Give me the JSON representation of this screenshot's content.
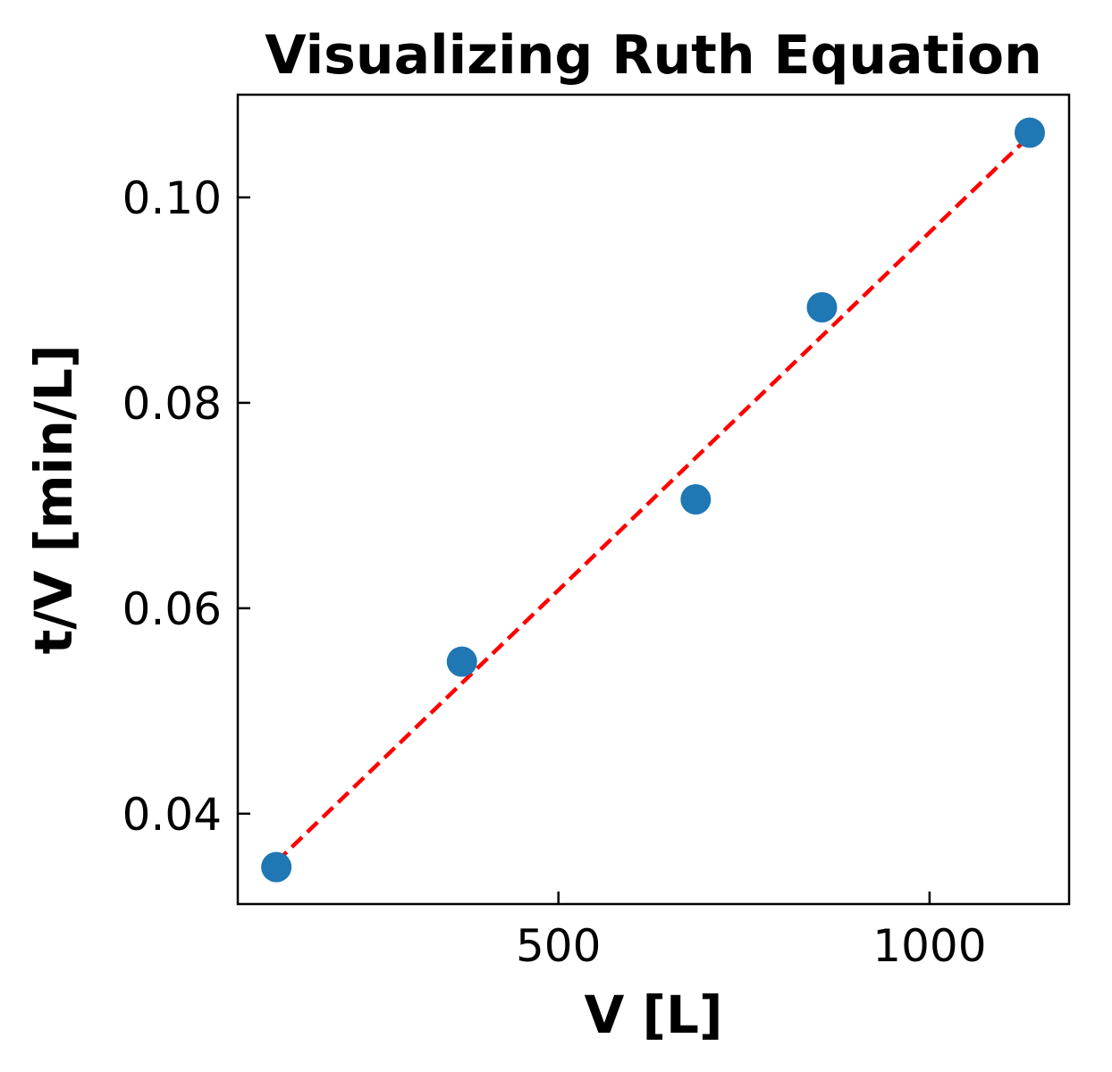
{
  "chart_data": {
    "type": "scatter",
    "title": "Visualizing Ruth Equation",
    "xlabel": "V [L]",
    "ylabel": "t/V [min/L]",
    "xlim": [
      68,
      1188
    ],
    "ylim": [
      0.0312,
      0.11
    ],
    "xticks": [
      500,
      1000
    ],
    "xtick_labels": [
      "500",
      "1000"
    ],
    "yticks": [
      0.04,
      0.06,
      0.08,
      0.1
    ],
    "ytick_labels": [
      "0.04",
      "0.06",
      "0.08",
      "0.10"
    ],
    "grid": false,
    "colors": {
      "points": "#1f77b4",
      "fit": "#ff0000"
    },
    "series": [
      {
        "kind": "points",
        "x": [
          120,
          370,
          685,
          855,
          1135
        ],
        "y": [
          0.0348,
          0.0548,
          0.0706,
          0.0893,
          0.1063
        ]
      },
      {
        "kind": "fit",
        "style": "dashed",
        "x": [
          120,
          1135
        ],
        "y": [
          0.0353,
          0.106
        ]
      }
    ]
  }
}
